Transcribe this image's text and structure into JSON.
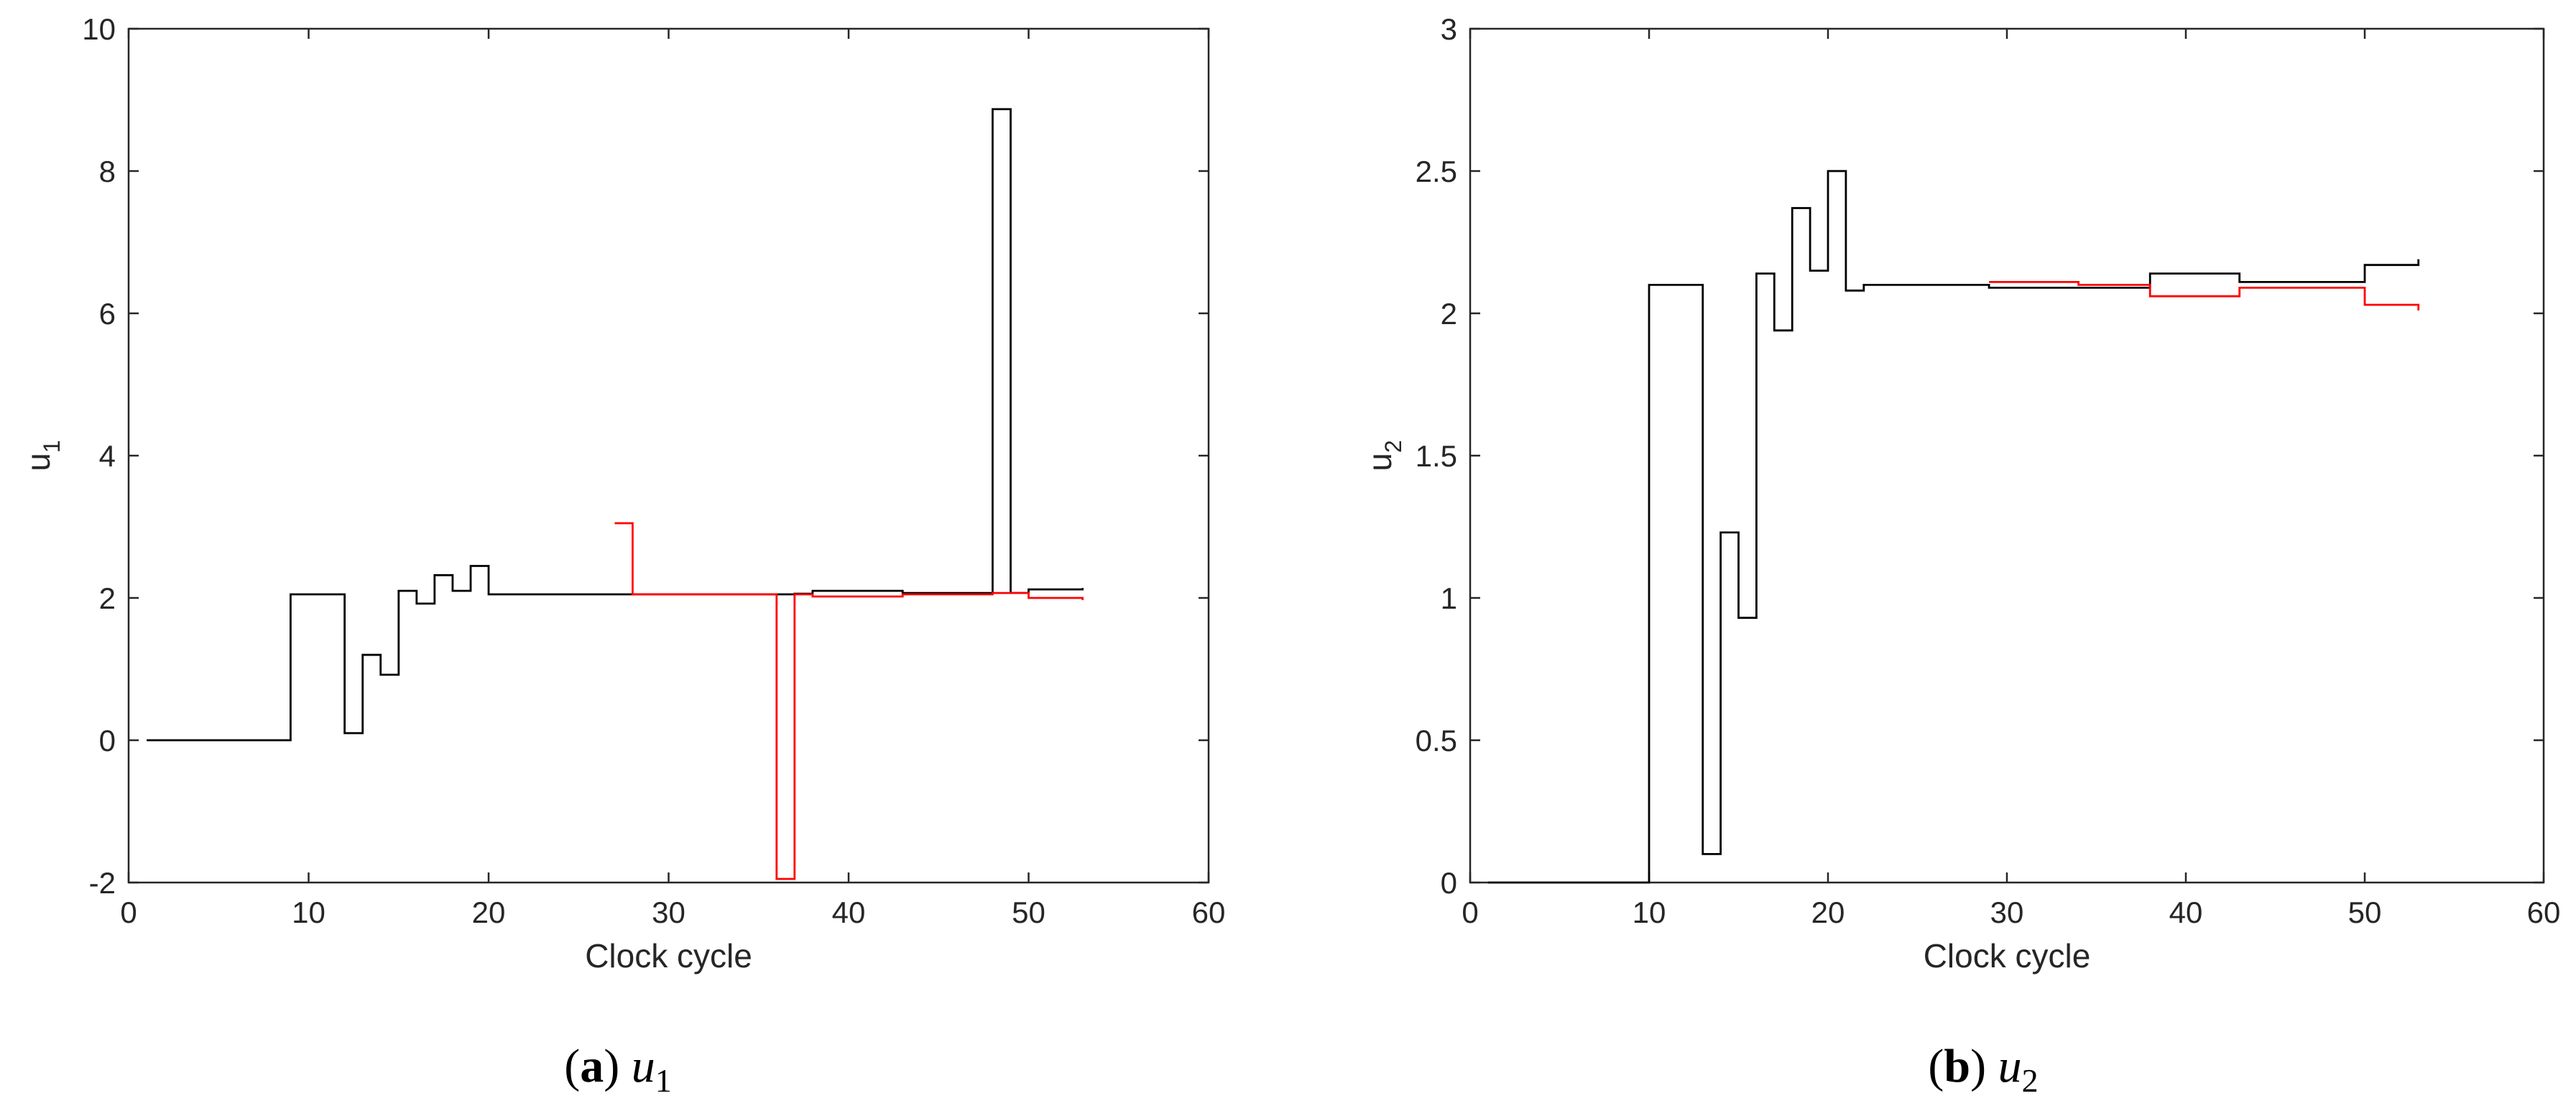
{
  "colors": {
    "series_black": "#000000",
    "series_red": "#ff0000",
    "axis": "#262626"
  },
  "chart_data": [
    {
      "type": "line",
      "step": true,
      "caption_letter": "a",
      "caption_var": "u",
      "caption_sub": "1",
      "xlabel": "Clock cycle",
      "ylabel": "u",
      "ylabel_sub": "1",
      "xlim": [
        0,
        60
      ],
      "ylim": [
        -2,
        10
      ],
      "xticks": [
        0,
        10,
        20,
        30,
        40,
        50,
        60
      ],
      "yticks": [
        -2,
        0,
        2,
        4,
        6,
        8,
        10
      ],
      "grid": false,
      "series": [
        {
          "color": "#000000",
          "x": [
            1,
            9,
            12,
            13,
            14,
            15,
            16,
            17,
            18,
            19,
            20,
            21,
            27,
            28,
            29,
            36,
            37,
            38,
            43,
            48,
            49,
            50,
            53
          ],
          "y": [
            0,
            2.05,
            0.1,
            1.2,
            0.92,
            2.1,
            1.92,
            2.32,
            2.1,
            2.45,
            2.05,
            2.05,
            2.05,
            2.05,
            2.05,
            2.05,
            2.06,
            2.1,
            2.07,
            8.87,
            2.07,
            2.12,
            2.14
          ]
        },
        {
          "color": "#ff0000",
          "x": [
            27,
            28,
            29,
            36,
            37,
            38,
            43,
            48,
            49,
            50,
            53
          ],
          "y": [
            3.05,
            2.05,
            2.05,
            -1.95,
            2.05,
            2.02,
            2.05,
            2.07,
            2.07,
            2.0,
            1.97
          ]
        }
      ]
    },
    {
      "type": "line",
      "step": true,
      "caption_letter": "b",
      "caption_var": "u",
      "caption_sub": "2",
      "xlabel": "Clock cycle",
      "ylabel": "u",
      "ylabel_sub": "2",
      "xlim": [
        0,
        60
      ],
      "ylim": [
        0,
        3
      ],
      "xticks": [
        0,
        10,
        20,
        30,
        40,
        50,
        60
      ],
      "yticks": [
        0,
        0.5,
        1,
        1.5,
        2,
        2.5,
        3
      ],
      "grid": false,
      "series": [
        {
          "color": "#000000",
          "x": [
            1,
            10,
            13,
            14,
            15,
            16,
            17,
            18,
            19,
            20,
            21,
            22,
            29,
            34,
            38,
            43,
            50,
            53
          ],
          "y": [
            0,
            2.1,
            0.1,
            1.23,
            0.93,
            2.14,
            1.94,
            2.37,
            2.15,
            2.5,
            2.08,
            2.1,
            2.09,
            2.09,
            2.14,
            2.11,
            2.17,
            2.19
          ]
        },
        {
          "color": "#ff0000",
          "x": [
            29,
            34,
            38,
            43,
            50,
            53
          ],
          "y": [
            2.11,
            2.1,
            2.06,
            2.09,
            2.03,
            2.01
          ]
        }
      ]
    }
  ]
}
